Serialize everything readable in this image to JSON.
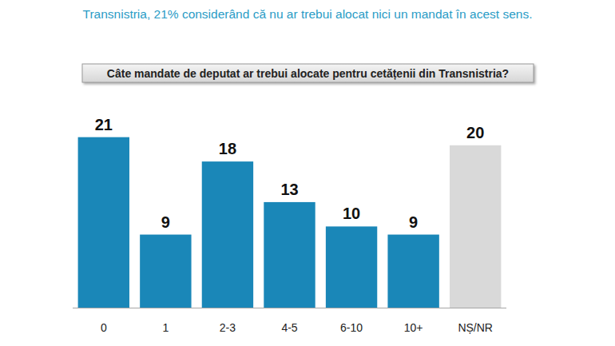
{
  "chart_data": {
    "type": "bar",
    "subtitle": "Transnistria, 21% considerând că nu ar trebui alocat nici un mandat în acest sens.",
    "title": "Câte mandate de deputat ar trebui alocate pentru cetățenii din Transnistria?",
    "categories": [
      "0",
      "1",
      "2-3",
      "4-5",
      "6-10",
      "10+",
      "NȘ/NR"
    ],
    "values": [
      21,
      9,
      18,
      13,
      10,
      9,
      20
    ],
    "colors": [
      "#1a87b8",
      "#1a87b8",
      "#1a87b8",
      "#1a87b8",
      "#1a87b8",
      "#1a87b8",
      "#d9d9d9"
    ],
    "ylim": [
      0,
      25
    ],
    "data_labels": true,
    "tick_labels": "x",
    "grid": false
  }
}
